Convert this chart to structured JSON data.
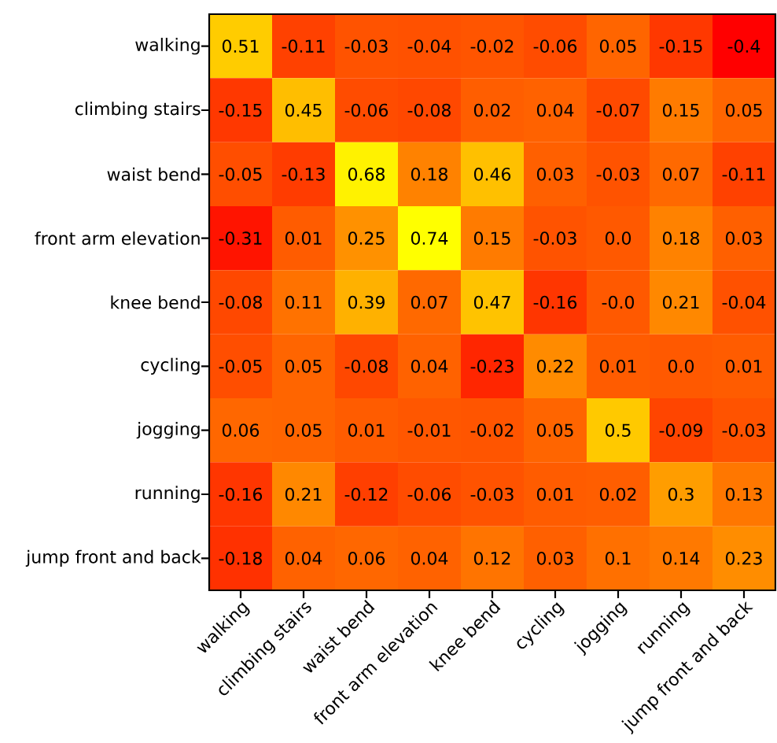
{
  "chart_data": {
    "type": "heatmap",
    "categories": [
      "walking",
      "climbing stairs",
      "waist bend",
      "front arm elevation",
      "knee bend",
      "cycling",
      "jogging",
      "running",
      "jump front and back"
    ],
    "y_categories": [
      "walking",
      "climbing stairs",
      "waist bend",
      "front arm elevation",
      "knee bend",
      "cycling",
      "jogging",
      "running",
      "jump front and back"
    ],
    "cells": [
      [
        0.51,
        -0.11,
        -0.03,
        -0.04,
        -0.02,
        -0.06,
        0.05,
        -0.15,
        -0.4
      ],
      [
        -0.15,
        0.45,
        -0.06,
        -0.08,
        0.02,
        0.04,
        -0.07,
        0.15,
        0.05
      ],
      [
        -0.05,
        -0.13,
        0.68,
        0.18,
        0.46,
        0.03,
        -0.03,
        0.07,
        -0.11
      ],
      [
        -0.31,
        0.01,
        0.25,
        0.74,
        0.15,
        -0.03,
        0.0,
        0.18,
        0.03
      ],
      [
        -0.08,
        0.11,
        0.39,
        0.07,
        0.47,
        -0.16,
        -0.0,
        0.21,
        -0.04
      ],
      [
        -0.05,
        0.05,
        -0.08,
        0.04,
        -0.23,
        0.22,
        0.01,
        0.0,
        0.01
      ],
      [
        0.06,
        0.05,
        0.01,
        -0.01,
        -0.02,
        0.05,
        0.5,
        -0.09,
        -0.03
      ],
      [
        -0.16,
        0.21,
        -0.12,
        -0.06,
        -0.03,
        0.01,
        0.02,
        0.3,
        0.13
      ],
      [
        -0.18,
        0.04,
        0.06,
        0.04,
        0.12,
        0.03,
        0.1,
        0.14,
        0.23
      ]
    ],
    "cell_labels": [
      [
        "0.51",
        "-0.11",
        "-0.03",
        "-0.04",
        "-0.02",
        "-0.06",
        "0.05",
        "-0.15",
        "-0.4"
      ],
      [
        "-0.15",
        "0.45",
        "-0.06",
        "-0.08",
        "0.02",
        "0.04",
        "-0.07",
        "0.15",
        "0.05"
      ],
      [
        "-0.05",
        "-0.13",
        "0.68",
        "0.18",
        "0.46",
        "0.03",
        "-0.03",
        "0.07",
        "-0.11"
      ],
      [
        "-0.31",
        "0.01",
        "0.25",
        "0.74",
        "0.15",
        "-0.03",
        "0.0",
        "0.18",
        "0.03"
      ],
      [
        "-0.08",
        "0.11",
        "0.39",
        "0.07",
        "0.47",
        "-0.16",
        "-0.0",
        "0.21",
        "-0.04"
      ],
      [
        "-0.05",
        "0.05",
        "-0.08",
        "0.04",
        "-0.23",
        "0.22",
        "0.01",
        "0.0",
        "0.01"
      ],
      [
        "0.06",
        "0.05",
        "0.01",
        "-0.01",
        "-0.02",
        "0.05",
        "0.5",
        "-0.09",
        "-0.03"
      ],
      [
        "-0.16",
        "0.21",
        "-0.12",
        "-0.06",
        "-0.03",
        "0.01",
        "0.02",
        "0.3",
        "0.13"
      ],
      [
        "-0.18",
        "0.04",
        "0.06",
        "0.04",
        "0.12",
        "0.03",
        "0.1",
        "0.14",
        "0.23"
      ]
    ]
  }
}
